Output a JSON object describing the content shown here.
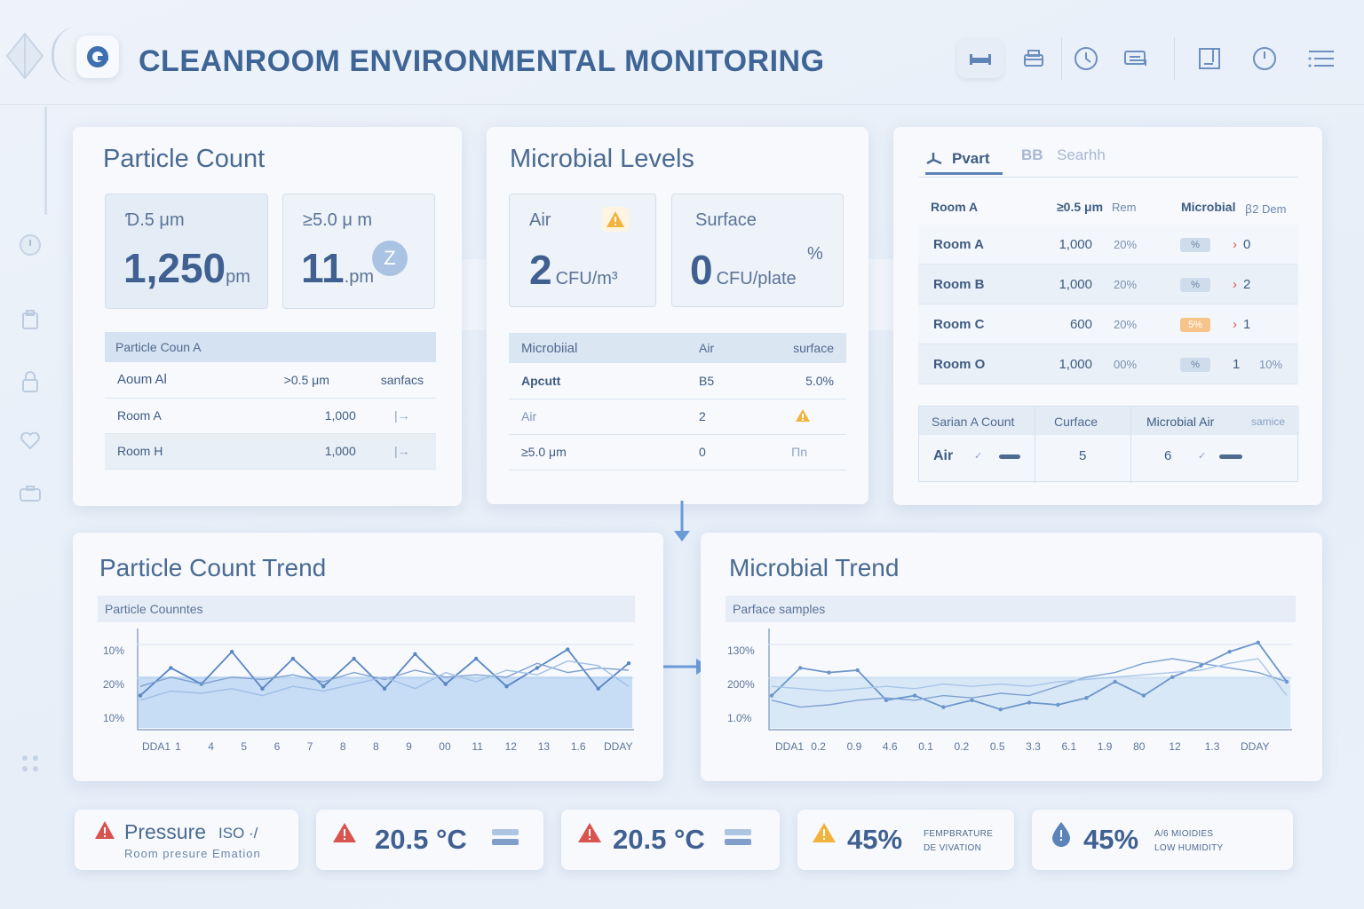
{
  "header": {
    "title": "CLEANROOM ENVIRONMENTAL MONITORING",
    "toolbar_icons": [
      "bed-icon",
      "printer-icon",
      "clock-icon",
      "transfer-icon",
      "panel-icon",
      "timer-icon",
      "list-icon"
    ]
  },
  "sidebar": {
    "icons": [
      "power-icon",
      "clipboard-icon",
      "lock-icon",
      "heart-icon",
      "briefcase-icon",
      "dots-icon"
    ]
  },
  "particle_count": {
    "title": "Particle Count",
    "stats": [
      {
        "label": "Ɗ.5 μm",
        "value": "1,250",
        "unit": "pm"
      },
      {
        "label": "≥5.0 μ m",
        "value": "11",
        "unit": ".pm",
        "badge": "Z"
      }
    ],
    "table": {
      "caption": "Particle Coun A",
      "header": [
        "Aoum Al",
        ">0.5 μm",
        "sanfacs"
      ],
      "rows": [
        [
          "Room A",
          "1,000",
          "|→"
        ],
        [
          "Room H",
          "1,000",
          "|→"
        ]
      ]
    }
  },
  "microbial_levels": {
    "title": "Microbial Levels",
    "stats": [
      {
        "label": "Air",
        "value": "2",
        "unit": "CFU/m³"
      },
      {
        "label": "Surface",
        "value": "0",
        "unit": "CFU/plate",
        "extra": "%"
      }
    ],
    "table": {
      "header": [
        "Microbiial",
        "Air",
        "surface"
      ],
      "rows": [
        [
          "Apcutt",
          "B5",
          "5.0%"
        ],
        [
          "Air",
          "2",
          ""
        ],
        [
          "≥5.0 μm",
          "0",
          "Πn"
        ]
      ]
    }
  },
  "rooms_panel": {
    "tabs": [
      "Pvart",
      "BB",
      "Searhh"
    ],
    "header": [
      "Room A",
      "≥0.5 μm",
      "Rem",
      "Microbial",
      "ꞵ2 Dem"
    ],
    "rows": [
      {
        "room": "Room A",
        "count": "1,000",
        "pct": "20%",
        "badge": "%",
        "badge_warn": false,
        "arrow": "›",
        "tail": "0",
        "tail2": ""
      },
      {
        "room": "Room B",
        "count": "1,000",
        "pct": "20%",
        "badge": "%",
        "badge_warn": false,
        "arrow": "›",
        "tail": "2",
        "tail2": ""
      },
      {
        "room": "Room C",
        "count": "600",
        "pct": "20%",
        "badge": "5%",
        "badge_warn": true,
        "arrow": "›",
        "tail": "1",
        "tail2": ""
      },
      {
        "room": "Room O",
        "count": "1,000",
        "pct": "00%",
        "badge": "%",
        "badge_warn": false,
        "arrow": "1",
        "tail": "",
        "tail2": "10%"
      }
    ],
    "subtable": {
      "header": [
        "Sarian A Count",
        "Curface",
        "Microbial Air",
        "samice"
      ],
      "row": [
        "Air",
        "5",
        "6"
      ]
    },
    "colors": {
      "warn": "#f6c48a",
      "alert_red": "#d9534f"
    }
  },
  "particle_trend": {
    "title": "Particle Count Trend",
    "subtitle": "Particle Counntes",
    "chart_data": {
      "type": "line",
      "yticks": [
        "10%",
        "20%",
        "10%"
      ],
      "xticks": [
        "DDA1",
        "1",
        "4",
        "5",
        "6",
        "7",
        "8",
        "8",
        "9",
        "00",
        "11",
        "12",
        "13",
        "1.6",
        "DDAY"
      ],
      "series": [
        {
          "values": [
            14,
            26,
            19,
            33,
            17,
            30,
            18,
            30,
            17,
            32,
            19,
            30,
            18,
            26,
            34,
            17,
            28
          ]
        },
        {
          "values": [
            18,
            22,
            19,
            22,
            21,
            23,
            20,
            24,
            21,
            25,
            22,
            23,
            22,
            28,
            24,
            26,
            25
          ]
        },
        {
          "values": [
            12,
            16,
            15,
            17,
            14,
            18,
            16,
            19,
            22,
            17,
            24,
            20,
            25,
            23,
            29,
            27,
            18
          ]
        }
      ]
    }
  },
  "microbial_trend": {
    "title": "Microbial Trend",
    "subtitle": "Parface samples",
    "chart_data": {
      "type": "line",
      "yticks": [
        "130%",
        "200%",
        "1.0%"
      ],
      "xticks": [
        "DDA1",
        "0.2",
        "0.9",
        "4.6",
        "0.1",
        "0.2",
        "0.5",
        "3.3",
        "6.1",
        "1.9",
        "80",
        "12",
        "1.3",
        "DDAY"
      ],
      "series": [
        {
          "values": [
            14,
            26,
            24,
            25,
            12,
            14,
            9,
            12,
            8,
            11,
            10,
            13,
            20,
            14,
            22,
            27,
            33,
            37,
            20
          ]
        },
        {
          "values": [
            12,
            9,
            10,
            12,
            13,
            12,
            14,
            13,
            15,
            14,
            18,
            22,
            24,
            28,
            30,
            28,
            26,
            24,
            20
          ]
        },
        {
          "values": [
            18,
            17,
            16,
            17,
            18,
            17,
            19,
            18,
            19,
            18,
            20,
            21,
            22,
            23,
            24,
            25,
            28,
            30,
            14
          ]
        }
      ]
    }
  },
  "alerts": [
    {
      "icon": "warning-red",
      "text": "Pressure",
      "text2": "ISO ·/",
      "small": "Room  presure  Emation"
    },
    {
      "icon": "warning-red",
      "value": "20.5 °C"
    },
    {
      "icon": "warning-red",
      "value": "20.5 °C"
    },
    {
      "icon": "warning-yellow",
      "value": "45%",
      "small1": "FEMPBRATURE",
      "small2": "DE VIVATION"
    },
    {
      "icon": "drop",
      "value": "45%",
      "small1": "A/6 MIOIDIES",
      "small2": "LOW HUMIDITY"
    }
  ]
}
